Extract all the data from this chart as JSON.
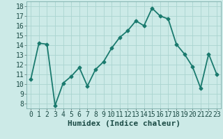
{
  "x": [
    0,
    1,
    2,
    3,
    4,
    5,
    6,
    7,
    8,
    9,
    10,
    11,
    12,
    13,
    14,
    15,
    16,
    17,
    18,
    19,
    20,
    21,
    22,
    23
  ],
  "y": [
    10.5,
    14.2,
    14.1,
    7.8,
    10.1,
    10.8,
    11.7,
    9.8,
    11.5,
    12.3,
    13.7,
    14.8,
    15.5,
    16.5,
    16.0,
    17.8,
    17.0,
    16.7,
    14.1,
    13.1,
    11.8,
    9.6,
    13.1,
    11.0
  ],
  "line_color": "#1a7a6e",
  "marker": "D",
  "marker_size": 2.5,
  "bg_color": "#cceae7",
  "grid_color": "#aad4d0",
  "xlabel": "Humidex (Indice chaleur)",
  "ylabel_ticks": [
    8,
    9,
    10,
    11,
    12,
    13,
    14,
    15,
    16,
    17,
    18
  ],
  "ylim": [
    7.5,
    18.5
  ],
  "xlim": [
    -0.5,
    23.5
  ],
  "xticks": [
    0,
    1,
    2,
    3,
    4,
    5,
    6,
    7,
    8,
    9,
    10,
    11,
    12,
    13,
    14,
    15,
    16,
    17,
    18,
    19,
    20,
    21,
    22,
    23
  ],
  "xlabel_fontsize": 8,
  "tick_fontsize": 7,
  "line_width": 1.3
}
